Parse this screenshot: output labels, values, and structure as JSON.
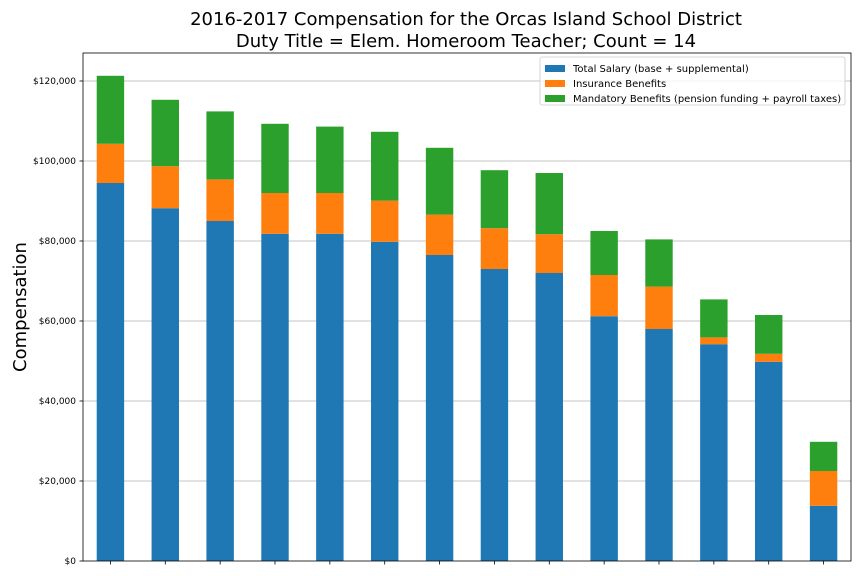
{
  "chart_data": {
    "type": "bar",
    "stacked": true,
    "title": "2016-2017 Compensation for the Orcas Island School District",
    "subtitle": "Duty Title = Elem. Homeroom Teacher; Count = 14",
    "xlabel": "",
    "ylabel": "Compensation",
    "ylim": [
      0,
      127000
    ],
    "yticks": [
      0,
      20000,
      40000,
      60000,
      80000,
      100000,
      120000
    ],
    "ytick_labels": [
      "$0",
      "$20,000",
      "$40,000",
      "$60,000",
      "$80,000",
      "$100,000",
      "$120,000"
    ],
    "grid": "horizontal",
    "legend_position": "top-right",
    "categories": [
      "",
      "",
      "",
      "",
      "",
      "",
      "",
      "",
      "",
      "",
      "",
      "",
      "",
      ""
    ],
    "series": [
      {
        "name": "Total Salary (base + supplemental)",
        "color": "#1f77b4",
        "values": [
          94500,
          88200,
          85000,
          81800,
          81800,
          79800,
          76500,
          73000,
          72000,
          61200,
          58000,
          54200,
          49800,
          13800
        ]
      },
      {
        "name": "Insurance Benefits",
        "color": "#ff7f0e",
        "values": [
          9800,
          10500,
          10400,
          10200,
          10200,
          10300,
          10100,
          10200,
          9700,
          10300,
          10600,
          1700,
          2000,
          8700
        ]
      },
      {
        "name": "Mandatory Benefits (pension funding + payroll taxes)",
        "color": "#2ca02c",
        "values": [
          17000,
          16600,
          17000,
          17300,
          16600,
          17200,
          16700,
          14500,
          15300,
          11000,
          11800,
          9500,
          9700,
          7300
        ]
      }
    ]
  }
}
